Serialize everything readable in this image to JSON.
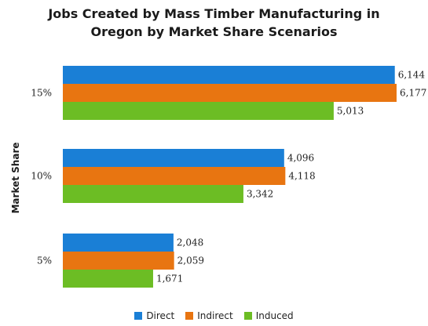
{
  "chart_data": {
    "type": "bar",
    "orientation": "horizontal",
    "title_line1": "Jobs Created by Mass Timber Manufacturing in",
    "title_line2": "Oregon by Market Share Scenarios",
    "ylabel": "Market Share",
    "xlabel": "",
    "categories": [
      "15%",
      "10%",
      "5%"
    ],
    "series": [
      {
        "name": "Direct",
        "color": "#1a7fd6",
        "values": [
          6144,
          4096,
          2048
        ],
        "labels": [
          "6,144",
          "4,096",
          "2,048"
        ]
      },
      {
        "name": "Indirect",
        "color": "#e87511",
        "values": [
          6177,
          4118,
          2059
        ],
        "labels": [
          "6,177",
          "4,118",
          "2,059"
        ]
      },
      {
        "name": "Induced",
        "color": "#6cbd24",
        "values": [
          5013,
          3342,
          1671
        ],
        "labels": [
          "5,013",
          "3,342",
          "1,671"
        ]
      }
    ],
    "xlim": [
      0,
      6177
    ],
    "grid": false,
    "legend_position": "bottom"
  }
}
